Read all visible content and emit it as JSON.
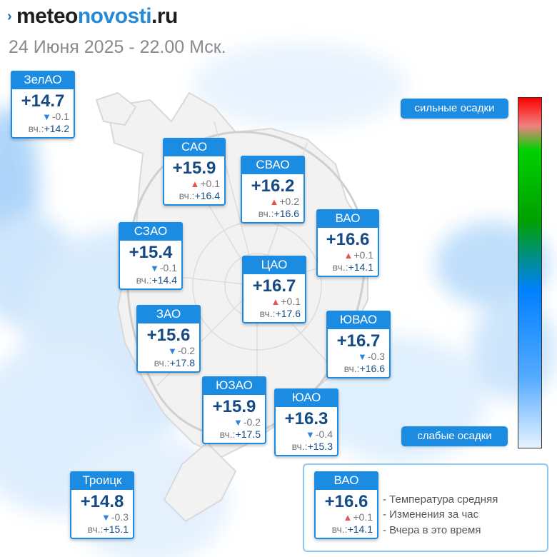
{
  "header": {
    "logo_part1": "meteo",
    "logo_part2": "novosti",
    "logo_part3": ".ru",
    "date_line": "24 Июня 2025 - 22.00 Мск."
  },
  "districts": [
    {
      "key": "zelao",
      "name": "ЗелАО",
      "temp": "+14.7",
      "trend": "down",
      "delta": "-0.1",
      "yest_label": "вч.:",
      "yest": "+14.2"
    },
    {
      "key": "sao",
      "name": "САО",
      "temp": "+15.9",
      "trend": "up",
      "delta": "+0.1",
      "yest_label": "вч.:",
      "yest": "+16.4"
    },
    {
      "key": "svao",
      "name": "СВАО",
      "temp": "+16.2",
      "trend": "up",
      "delta": "+0.2",
      "yest_label": "вч.:",
      "yest": "+16.6"
    },
    {
      "key": "vao",
      "name": "ВАО",
      "temp": "+16.6",
      "trend": "up",
      "delta": "+0.1",
      "yest_label": "вч.:",
      "yest": "+14.1"
    },
    {
      "key": "szao",
      "name": "СЗАО",
      "temp": "+15.4",
      "trend": "down",
      "delta": "-0.1",
      "yest_label": "вч.:",
      "yest": "+14.4"
    },
    {
      "key": "tsao",
      "name": "ЦАО",
      "temp": "+16.7",
      "trend": "up",
      "delta": "+0.1",
      "yest_label": "вч.:",
      "yest": "+17.6"
    },
    {
      "key": "zao",
      "name": "ЗАО",
      "temp": "+15.6",
      "trend": "down",
      "delta": "-0.2",
      "yest_label": "вч.:",
      "yest": "+17.8"
    },
    {
      "key": "yuvao",
      "name": "ЮВАО",
      "temp": "+16.7",
      "trend": "down",
      "delta": "-0.3",
      "yest_label": "вч.:",
      "yest": "+16.6"
    },
    {
      "key": "yuzao",
      "name": "ЮЗАО",
      "temp": "+15.9",
      "trend": "down",
      "delta": "-0.2",
      "yest_label": "вч.:",
      "yest": "+17.5"
    },
    {
      "key": "yuao",
      "name": "ЮАО",
      "temp": "+16.3",
      "trend": "down",
      "delta": "-0.4",
      "yest_label": "вч.:",
      "yest": "+15.3"
    },
    {
      "key": "troitsk",
      "name": "Троицк",
      "temp": "+14.8",
      "trend": "down",
      "delta": "-0.3",
      "yest_label": "вч.:",
      "yest": "+15.1"
    }
  ],
  "precip_scale": {
    "strong_label": "сильные осадки",
    "weak_label": "слабые осадки",
    "colors": [
      "#ff0000",
      "#00a000",
      "#0080ff",
      "#e6f3ff"
    ]
  },
  "legend": {
    "sample": {
      "name": "ВАО",
      "temp": "+16.6",
      "trend": "up",
      "delta": "+0.1",
      "yest_label": "вч.:",
      "yest": "+14.1"
    },
    "line1": "- Температура средняя",
    "line2": "- Изменения за час",
    "line3": "- Вчера в это время"
  },
  "colors": {
    "accent": "#1c8ce3",
    "temp_text": "#154a85",
    "trend_up": "#e65454",
    "trend_down": "#2f83d8"
  }
}
